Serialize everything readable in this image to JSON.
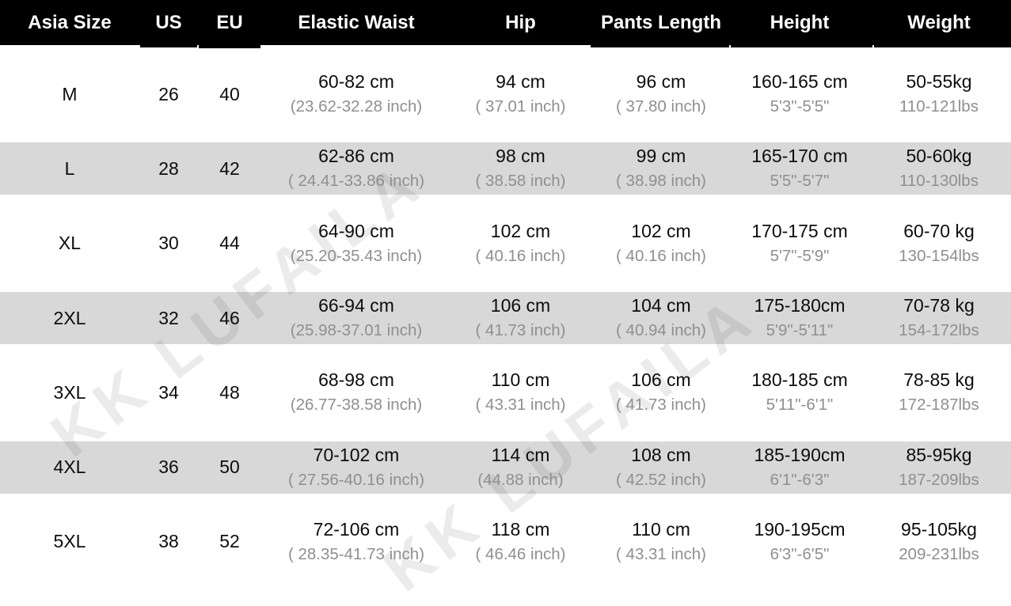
{
  "watermark": {
    "text": "KK LUFAILA"
  },
  "colors": {
    "header_bg": "#000000",
    "header_text": "#ffffff",
    "row_stripe": "#d8d8d8",
    "main_text": "#0d0d0d",
    "sub_text": "#8f8f8f",
    "watermark": "rgba(0,0,0,0.08)"
  },
  "chart_data": {
    "type": "table",
    "columns": [
      "Asia Size",
      "US",
      "EU",
      "Elastic Waist",
      "Hip",
      "Pants Length",
      "Height",
      "Weight"
    ],
    "rows": [
      [
        {
          "main": "M",
          "sub": ""
        },
        {
          "main": "26",
          "sub": ""
        },
        {
          "main": "40",
          "sub": ""
        },
        {
          "main": "60-82 cm",
          "sub": "(23.62-32.28 inch)"
        },
        {
          "main": "94 cm",
          "sub": "( 37.01 inch)"
        },
        {
          "main": "96 cm",
          "sub": "( 37.80 inch)"
        },
        {
          "main": "160-165 cm",
          "sub": "5'3\"-5'5\""
        },
        {
          "main": "50-55kg",
          "sub": "110-121lbs"
        }
      ],
      [
        {
          "main": "L",
          "sub": ""
        },
        {
          "main": "28",
          "sub": ""
        },
        {
          "main": "42",
          "sub": ""
        },
        {
          "main": "62-86 cm",
          "sub": "( 24.41-33.86 inch)"
        },
        {
          "main": "98 cm",
          "sub": "( 38.58 inch)"
        },
        {
          "main": "99 cm",
          "sub": "( 38.98 inch)"
        },
        {
          "main": "165-170 cm",
          "sub": "5'5\"-5'7\""
        },
        {
          "main": "50-60kg",
          "sub": "110-130lbs"
        }
      ],
      [
        {
          "main": "XL",
          "sub": ""
        },
        {
          "main": "30",
          "sub": ""
        },
        {
          "main": "44",
          "sub": ""
        },
        {
          "main": "64-90 cm",
          "sub": "(25.20-35.43 inch)"
        },
        {
          "main": "102 cm",
          "sub": "( 40.16 inch)"
        },
        {
          "main": "102 cm",
          "sub": "( 40.16 inch)"
        },
        {
          "main": "170-175 cm",
          "sub": "5'7\"-5'9\""
        },
        {
          "main": "60-70 kg",
          "sub": "130-154lbs"
        }
      ],
      [
        {
          "main": "2XL",
          "sub": ""
        },
        {
          "main": "32",
          "sub": ""
        },
        {
          "main": "46",
          "sub": ""
        },
        {
          "main": "66-94 cm",
          "sub": "(25.98-37.01 inch)"
        },
        {
          "main": "106 cm",
          "sub": "( 41.73 inch)"
        },
        {
          "main": "104 cm",
          "sub": "( 40.94 inch)"
        },
        {
          "main": "175-180cm",
          "sub": "5'9\"-5'11\""
        },
        {
          "main": "70-78 kg",
          "sub": "154-172lbs"
        }
      ],
      [
        {
          "main": "3XL",
          "sub": ""
        },
        {
          "main": "34",
          "sub": ""
        },
        {
          "main": "48",
          "sub": ""
        },
        {
          "main": "68-98 cm",
          "sub": "(26.77-38.58 inch)"
        },
        {
          "main": "110 cm",
          "sub": "( 43.31 inch)"
        },
        {
          "main": "106 cm",
          "sub": "( 41.73 inch)"
        },
        {
          "main": "180-185 cm",
          "sub": "5'11\"-6'1\""
        },
        {
          "main": "78-85 kg",
          "sub": "172-187lbs"
        }
      ],
      [
        {
          "main": "4XL",
          "sub": ""
        },
        {
          "main": "36",
          "sub": ""
        },
        {
          "main": "50",
          "sub": ""
        },
        {
          "main": "70-102 cm",
          "sub": "( 27.56-40.16 inch)"
        },
        {
          "main": "114 cm",
          "sub": "(44.88 inch)"
        },
        {
          "main": "108 cm",
          "sub": "( 42.52 inch)"
        },
        {
          "main": "185-190cm",
          "sub": "6'1\"-6'3\""
        },
        {
          "main": "85-95kg",
          "sub": "187-209lbs"
        }
      ],
      [
        {
          "main": "5XL",
          "sub": ""
        },
        {
          "main": "38",
          "sub": ""
        },
        {
          "main": "52",
          "sub": ""
        },
        {
          "main": "72-106 cm",
          "sub": "( 28.35-41.73 inch)"
        },
        {
          "main": "118 cm",
          "sub": "( 46.46 inch)"
        },
        {
          "main": "110 cm",
          "sub": "( 43.31 inch)"
        },
        {
          "main": "190-195cm",
          "sub": "6'3\"-6'5\""
        },
        {
          "main": "95-105kg",
          "sub": "209-231lbs"
        }
      ]
    ]
  }
}
